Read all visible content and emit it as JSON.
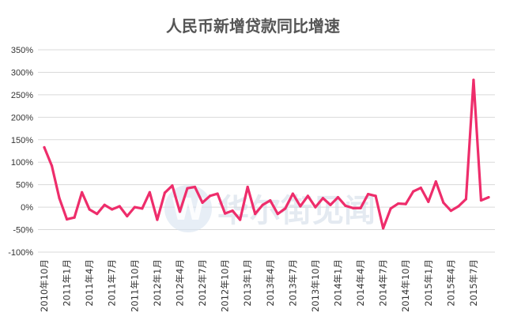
{
  "chart_data": {
    "type": "line",
    "title": "人民币新增贷款同比增速",
    "xlabel": "",
    "ylabel": "",
    "ylim": [
      -100,
      350
    ],
    "ytick_step": 50,
    "ytick_suffix": "%",
    "grid": true,
    "legend": "none",
    "x_tick_labels": [
      "2010年10月",
      "2011年1月",
      "2011年4月",
      "2011年7月",
      "2011年10月",
      "2012年1月",
      "2012年4月",
      "2012年7月",
      "2012年10月",
      "2013年1月",
      "2013年4月",
      "2013年7月",
      "2013年10月",
      "2014年1月",
      "2014年4月",
      "2014年7月",
      "2014年10月",
      "2015年1月",
      "2015年4月",
      "2015年7月"
    ],
    "x_tick_every": 3,
    "series": [
      {
        "color": "#ee2d6b",
        "values": [
          133,
          92,
          20,
          -27,
          -23,
          33,
          -5,
          -15,
          5,
          -5,
          2,
          -20,
          0,
          -3,
          33,
          -28,
          32,
          48,
          -10,
          42,
          45,
          10,
          25,
          30,
          -14,
          -8,
          -28,
          45,
          -15,
          5,
          15,
          -15,
          -3,
          30,
          2,
          25,
          0,
          20,
          5,
          22,
          3,
          -2,
          -2,
          29,
          25,
          -47,
          -3,
          8,
          7,
          35,
          43,
          12,
          57,
          10,
          -8,
          2,
          18,
          283,
          15,
          22
        ]
      }
    ]
  },
  "watermark": {
    "text": "华尔街见闻",
    "mark": "W"
  }
}
